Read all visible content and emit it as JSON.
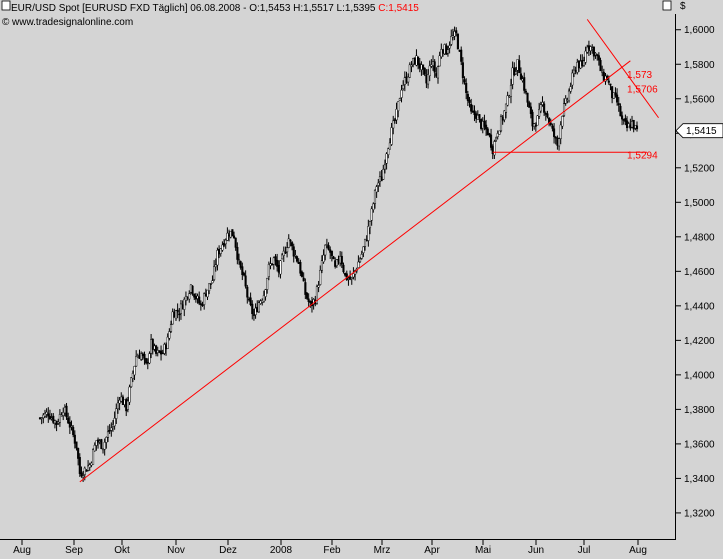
{
  "header": {
    "title_prefix": "EUR/USD Spot [EURUSD FXD  Täglich] 06.08.2008 - O:1,5453 H:1,5517 L:1,5395 ",
    "title_close": "C:1,5415",
    "copyright_symbol": "©",
    "site": "www.tradesignalonline.com",
    "currency_symbol": "$"
  },
  "colors": {
    "background": "#d4d4d4",
    "candles": "#000000",
    "trendlines": "#ff0000",
    "accent_close": "#ff0000"
  },
  "chart_data": {
    "type": "candlestick",
    "title": "EUR/USD Spot [EURUSD FXD  Täglich] 06.08.2008",
    "ohlc_last": {
      "open": "1,5453",
      "high": "1,5517",
      "low": "1,5395",
      "close": "1,5415"
    },
    "x_tick_labels": [
      "Aug",
      "Sep",
      "Okt",
      "Nov",
      "Dez",
      "2008",
      "Feb",
      "Mrz",
      "Apr",
      "Mai",
      "Jun",
      "Jul",
      "Aug"
    ],
    "y_tick_labels": [
      "1,3200",
      "1,3400",
      "1,3600",
      "1,3800",
      "1,4000",
      "1,4200",
      "1,4400",
      "1,4600",
      "1,4800",
      "1,5000",
      "1,5200",
      "1,5400",
      "1,5600",
      "1,5800",
      "1,6000"
    ],
    "ylim": [
      1.313,
      1.6097
    ],
    "grid": false,
    "close_path": [
      [
        0,
        1.375
      ],
      [
        5,
        1.378
      ],
      [
        10,
        1.372
      ],
      [
        14,
        1.381
      ],
      [
        18,
        1.371
      ],
      [
        22,
        1.359
      ],
      [
        24,
        1.343
      ],
      [
        27,
        1.345
      ],
      [
        30,
        1.348
      ],
      [
        34,
        1.362
      ],
      [
        38,
        1.359
      ],
      [
        41,
        1.366
      ],
      [
        44,
        1.371
      ],
      [
        48,
        1.388
      ],
      [
        52,
        1.381
      ],
      [
        55,
        1.396
      ],
      [
        58,
        1.411
      ],
      [
        61,
        1.412
      ],
      [
        64,
        1.405
      ],
      [
        67,
        1.418
      ],
      [
        70,
        1.412
      ],
      [
        74,
        1.413
      ],
      [
        77,
        1.42
      ],
      [
        80,
        1.436
      ],
      [
        84,
        1.437
      ],
      [
        88,
        1.445
      ],
      [
        91,
        1.452
      ],
      [
        94,
        1.445
      ],
      [
        97,
        1.44
      ],
      [
        100,
        1.448
      ],
      [
        104,
        1.455
      ],
      [
        107,
        1.47
      ],
      [
        111,
        1.478
      ],
      [
        114,
        1.483
      ],
      [
        117,
        1.481
      ],
      [
        120,
        1.464
      ],
      [
        123,
        1.455
      ],
      [
        126,
        1.441
      ],
      [
        129,
        1.434
      ],
      [
        132,
        1.442
      ],
      [
        135,
        1.447
      ],
      [
        138,
        1.462
      ],
      [
        141,
        1.467
      ],
      [
        144,
        1.46
      ],
      [
        147,
        1.47
      ],
      [
        150,
        1.479
      ],
      [
        153,
        1.471
      ],
      [
        156,
        1.465
      ],
      [
        160,
        1.447
      ],
      [
        163,
        1.44
      ],
      [
        166,
        1.444
      ],
      [
        169,
        1.459
      ],
      [
        172,
        1.474
      ],
      [
        175,
        1.471
      ],
      [
        178,
        1.461
      ],
      [
        181,
        1.47
      ],
      [
        184,
        1.457
      ],
      [
        188,
        1.455
      ],
      [
        191,
        1.463
      ],
      [
        194,
        1.47
      ],
      [
        197,
        1.48
      ],
      [
        200,
        1.494
      ],
      [
        203,
        1.51
      ],
      [
        206,
        1.514
      ],
      [
        209,
        1.53
      ],
      [
        212,
        1.541
      ],
      [
        215,
        1.551
      ],
      [
        218,
        1.567
      ],
      [
        221,
        1.572
      ],
      [
        224,
        1.58
      ],
      [
        227,
        1.583
      ],
      [
        230,
        1.577
      ],
      [
        233,
        1.569
      ],
      [
        236,
        1.582
      ],
      [
        239,
        1.573
      ],
      [
        242,
        1.59
      ],
      [
        245,
        1.588
      ],
      [
        248,
        1.595
      ],
      [
        251,
        1.597
      ],
      [
        254,
        1.58
      ],
      [
        257,
        1.563
      ],
      [
        260,
        1.551
      ],
      [
        263,
        1.551
      ],
      [
        266,
        1.545
      ],
      [
        270,
        1.541
      ],
      [
        273,
        1.531
      ],
      [
        276,
        1.542
      ],
      [
        279,
        1.549
      ],
      [
        282,
        1.559
      ],
      [
        285,
        1.575
      ],
      [
        288,
        1.58
      ],
      [
        291,
        1.571
      ],
      [
        294,
        1.558
      ],
      [
        297,
        1.545
      ],
      [
        300,
        1.548
      ],
      [
        303,
        1.557
      ],
      [
        306,
        1.55
      ],
      [
        309,
        1.541
      ],
      [
        312,
        1.533
      ],
      [
        315,
        1.552
      ],
      [
        318,
        1.56
      ],
      [
        321,
        1.572
      ],
      [
        324,
        1.581
      ],
      [
        327,
        1.578
      ],
      [
        330,
        1.592
      ],
      [
        333,
        1.589
      ],
      [
        336,
        1.584
      ],
      [
        339,
        1.573
      ],
      [
        342,
        1.572
      ],
      [
        345,
        1.562
      ],
      [
        348,
        1.558
      ],
      [
        351,
        1.547
      ],
      [
        354,
        1.543
      ],
      [
        357,
        1.546
      ],
      [
        360,
        1.541
      ]
    ],
    "trendlines": [
      {
        "from": [
          24,
          1.338
        ],
        "to": [
          356,
          1.582
        ]
      },
      {
        "from": [
          330,
          1.606
        ],
        "to": [
          373,
          1.549
        ]
      },
      {
        "from": [
          273,
          1.529
        ],
        "to": [
          366,
          1.529
        ]
      }
    ],
    "annotations": [
      {
        "text": "1,573",
        "x": 354,
        "y": 1.572
      },
      {
        "text": "1,5706",
        "x": 354,
        "y": 1.5635
      },
      {
        "text": "1,5294",
        "x": 354,
        "y": 1.5255
      }
    ],
    "current_price_label": "1,5415"
  }
}
